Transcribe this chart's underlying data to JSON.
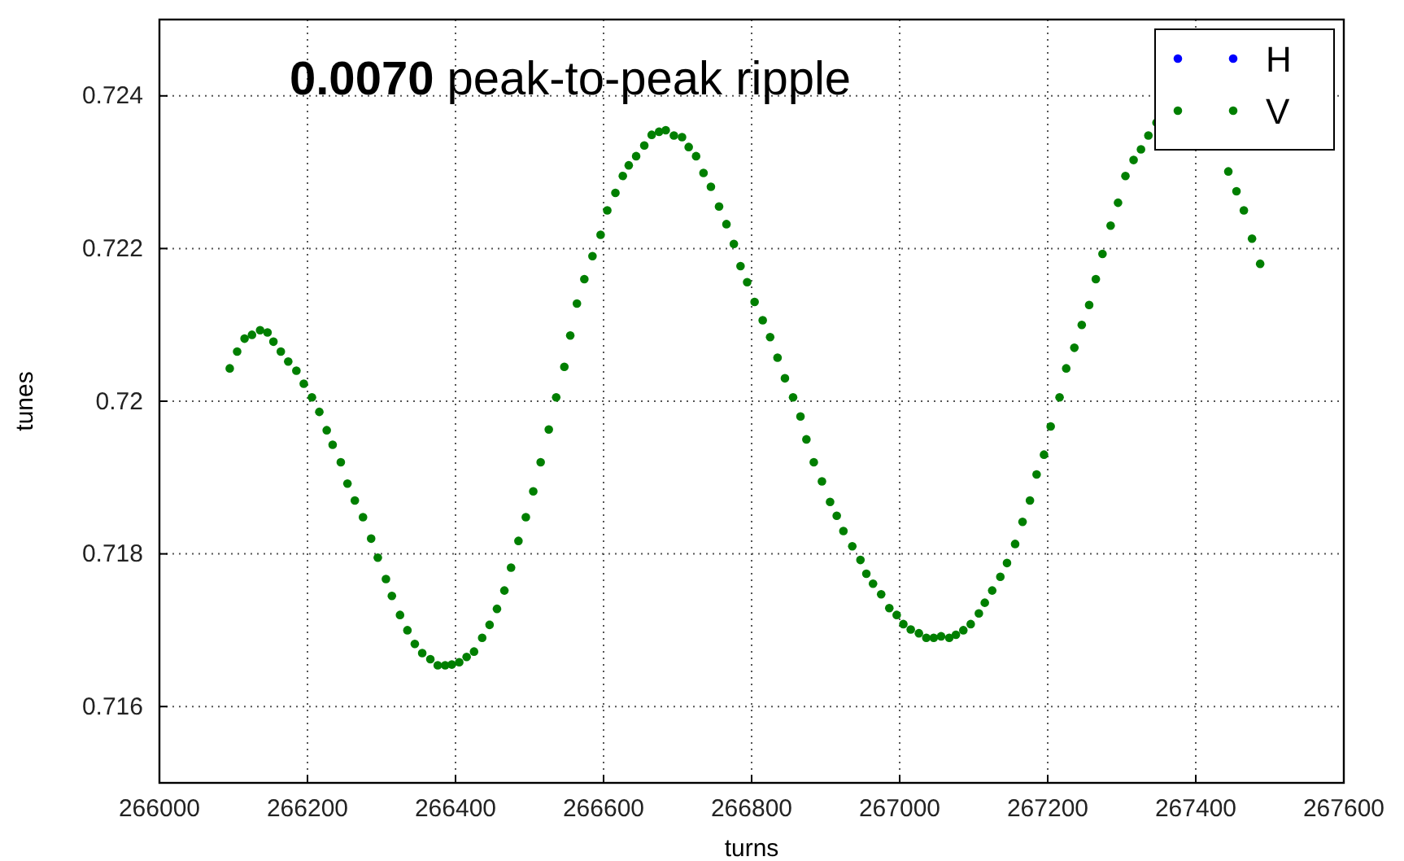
{
  "chart_data": {
    "type": "scatter",
    "xlabel": "turns",
    "ylabel": "tunes",
    "annotations": [
      "0.0070 peak-to-peak ripple"
    ],
    "xlim": [
      266000,
      267600
    ],
    "xticks": [
      266000,
      266200,
      266400,
      266600,
      266800,
      267000,
      267200,
      267400,
      267600
    ],
    "ylim": [
      0.715,
      0.725
    ],
    "yticks": [
      0.716,
      0.718,
      0.72,
      0.722,
      0.724
    ],
    "grid": true,
    "legend": "top right",
    "marker": "circle",
    "series": [
      {
        "name": "H",
        "color": "#0000ff"
      },
      {
        "name": "V",
        "color": "#007f00",
        "x": [
          266095,
          266105,
          266115,
          266125,
          266136,
          266146,
          266154,
          266164,
          266174,
          266185,
          266195,
          266206,
          266216,
          266226,
          266234,
          266245,
          266254,
          266264,
          266275,
          266286,
          266295,
          266306,
          266314,
          266325,
          266335,
          266345,
          266355,
          266366,
          266376,
          266386,
          266395,
          266405,
          266415,
          266425,
          266436,
          266446,
          266456,
          266466,
          266475,
          266485,
          266495,
          266505,
          266515,
          266526,
          266536,
          266547,
          266555,
          266564,
          266574,
          266585,
          266596,
          266605,
          266616,
          266626,
          266634,
          266644,
          266655,
          266665,
          266675,
          266684,
          266695,
          266706,
          266715,
          266725,
          266735,
          266745,
          266756,
          266766,
          266776,
          266785,
          266794,
          266804,
          266815,
          266825,
          266835,
          266845,
          266856,
          266866,
          266874,
          266884,
          266895,
          266906,
          266915,
          266924,
          266936,
          266947,
          266955,
          266964,
          266975,
          266986,
          266996,
          267005,
          267015,
          267026,
          267036,
          267046,
          267056,
          267067,
          267076,
          267086,
          267096,
          267107,
          267115,
          267125,
          267136,
          267145,
          267156,
          267166,
          267176,
          267185,
          267195,
          267204,
          267216,
          267225,
          267236,
          267246,
          267256,
          267265,
          267274,
          267285,
          267295,
          267305,
          267316,
          267326,
          267336,
          267347,
          267444,
          267455,
          267465,
          267476,
          267487
        ],
        "values": [
          0.72043,
          0.72065,
          0.72082,
          0.72087,
          0.72093,
          0.7209,
          0.72078,
          0.72065,
          0.72052,
          0.7204,
          0.72023,
          0.72005,
          0.71986,
          0.71962,
          0.71943,
          0.7192,
          0.71892,
          0.7187,
          0.71848,
          0.7182,
          0.71795,
          0.71767,
          0.71745,
          0.7172,
          0.717,
          0.71682,
          0.7167,
          0.71662,
          0.71654,
          0.71654,
          0.71655,
          0.71658,
          0.71665,
          0.71672,
          0.7169,
          0.71707,
          0.71728,
          0.71752,
          0.71782,
          0.71817,
          0.71848,
          0.71882,
          0.7192,
          0.71963,
          0.72005,
          0.72045,
          0.72086,
          0.72128,
          0.7216,
          0.7219,
          0.72218,
          0.7225,
          0.72273,
          0.72295,
          0.72309,
          0.72321,
          0.72335,
          0.72349,
          0.72353,
          0.72355,
          0.72348,
          0.72346,
          0.72333,
          0.72321,
          0.72299,
          0.72281,
          0.72255,
          0.72232,
          0.72206,
          0.72177,
          0.72156,
          0.7213,
          0.72106,
          0.72084,
          0.72057,
          0.7203,
          0.72005,
          0.7198,
          0.7195,
          0.7192,
          0.71895,
          0.71868,
          0.7185,
          0.7183,
          0.7181,
          0.71792,
          0.71774,
          0.71761,
          0.71747,
          0.71729,
          0.7172,
          0.71708,
          0.71701,
          0.71696,
          0.7169,
          0.7169,
          0.71692,
          0.7169,
          0.71694,
          0.717,
          0.71708,
          0.71722,
          0.71736,
          0.71752,
          0.7177,
          0.71788,
          0.71813,
          0.71842,
          0.7187,
          0.71904,
          0.7193,
          0.71967,
          0.72005,
          0.72043,
          0.7207,
          0.721,
          0.72126,
          0.7216,
          0.72193,
          0.7223,
          0.7226,
          0.72295,
          0.72316,
          0.7233,
          0.72348,
          0.72365,
          0.72301,
          0.72275,
          0.7225,
          0.72213,
          0.7218
        ]
      }
    ]
  }
}
